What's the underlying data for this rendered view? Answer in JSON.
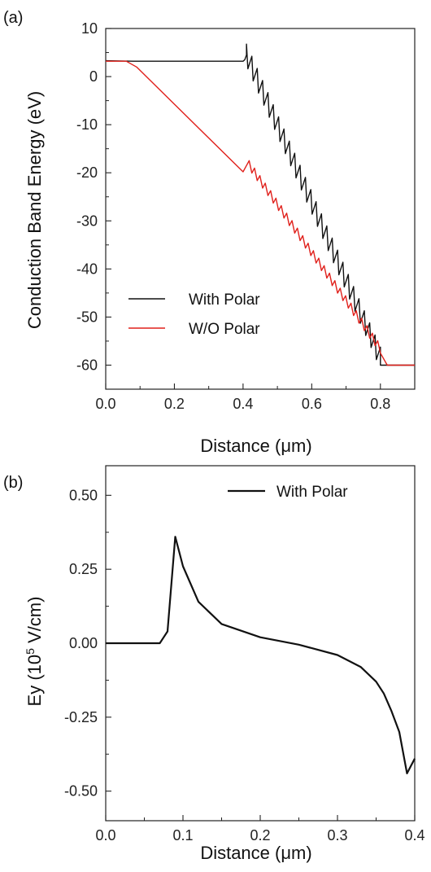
{
  "chart_data": [
    {
      "panel": "(a)",
      "type": "line",
      "xlabel": "Distance (μm)",
      "ylabel": "Conduction Band Energy (eV)",
      "xlim": [
        0.0,
        0.9
      ],
      "ylim": [
        -65,
        10
      ],
      "xticks": [
        0.0,
        0.2,
        0.4,
        0.6,
        0.8
      ],
      "yticks": [
        10,
        0,
        -10,
        -20,
        -30,
        -40,
        -50,
        -60
      ],
      "xtick_labels": [
        "0.0",
        "0.2",
        "0.4",
        "0.6",
        "0.8"
      ],
      "ytick_labels": [
        "10",
        "0",
        "-10",
        "-20",
        "-30",
        "-40",
        "-50",
        "-60"
      ],
      "legend_position": "lower-left",
      "series": [
        {
          "name": "With Polar",
          "color": "#111111",
          "x": [
            0.0,
            0.08,
            0.4,
            0.405,
            0.41,
            0.8,
            0.8,
            0.81,
            0.9
          ],
          "y": [
            3.3,
            3.2,
            3.2,
            3.5,
            4.5,
            -58.5,
            -60.0,
            -60.0,
            -60.0
          ],
          "sawtooth": {
            "x_start": 0.41,
            "x_end": 0.8,
            "teeth": 25,
            "amplitude": 4.5
          }
        },
        {
          "name": "W/O Polar",
          "color": "#e0201b",
          "x": [
            0.0,
            0.06,
            0.09,
            0.4,
            0.41,
            0.8,
            0.82,
            0.9
          ],
          "y": [
            3.2,
            3.2,
            2.0,
            -19.8,
            -18.5,
            -57.5,
            -60.0,
            -60.0
          ],
          "ripple": {
            "x_start": 0.41,
            "x_end": 0.8,
            "teeth": 25,
            "amplitude": 1.8
          }
        }
      ]
    },
    {
      "panel": "(b)",
      "type": "line",
      "xlabel": "Distance (μm)",
      "ylabel_prefix": "Ey (10",
      "ylabel_sup": "5",
      "ylabel_suffix": " V/cm)",
      "xlim": [
        0.0,
        0.4
      ],
      "ylim": [
        -0.6,
        0.6
      ],
      "xticks": [
        0.0,
        0.1,
        0.2,
        0.3,
        0.4
      ],
      "yticks": [
        0.5,
        0.25,
        0.0,
        -0.25,
        -0.5
      ],
      "xtick_labels": [
        "0.0",
        "0.1",
        "0.2",
        "0.3",
        "0.4"
      ],
      "ytick_labels": [
        "0.50",
        "0.25",
        "0.00",
        "-0.25",
        "-0.50"
      ],
      "legend_position": "top-right",
      "series": [
        {
          "name": "With Polar",
          "color": "#111111",
          "x": [
            0.0,
            0.07,
            0.075,
            0.08,
            0.09,
            0.1,
            0.12,
            0.15,
            0.2,
            0.25,
            0.3,
            0.33,
            0.35,
            0.36,
            0.37,
            0.38,
            0.39,
            0.4
          ],
          "y": [
            0.0,
            0.0,
            0.02,
            0.04,
            0.36,
            0.26,
            0.14,
            0.065,
            0.02,
            -0.005,
            -0.04,
            -0.08,
            -0.13,
            -0.17,
            -0.23,
            -0.3,
            -0.44,
            -0.39
          ]
        }
      ]
    }
  ]
}
